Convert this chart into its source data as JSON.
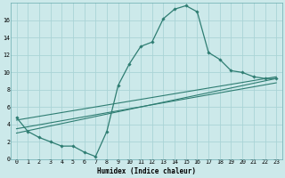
{
  "xlabel": "Humidex (Indice chaleur)",
  "bg_color": "#cce9ea",
  "grid_color": "#aad4d6",
  "line_color": "#2e7d72",
  "marker_color": "#2e7d72",
  "series1_x": [
    0,
    1,
    2,
    3,
    4,
    5,
    6,
    7,
    8,
    9,
    10,
    11,
    12,
    13,
    14,
    15,
    16,
    17,
    18,
    19,
    20,
    21,
    22,
    23
  ],
  "series1_y": [
    4.8,
    3.2,
    2.5,
    2.0,
    1.5,
    1.5,
    0.8,
    0.3,
    3.2,
    8.5,
    11.0,
    13.0,
    13.5,
    16.2,
    17.3,
    17.7,
    17.0,
    12.3,
    11.5,
    10.2,
    10.0,
    9.5,
    9.3,
    9.3
  ],
  "series2_x": [
    0,
    23
  ],
  "series2_y": [
    4.5,
    9.5
  ],
  "series3_x": [
    0,
    23
  ],
  "series3_y": [
    3.5,
    8.8
  ],
  "series4_x": [
    0,
    23
  ],
  "series4_y": [
    3.0,
    9.3
  ],
  "xlim": [
    -0.5,
    23.5
  ],
  "ylim": [
    0,
    18
  ],
  "yticks": [
    0,
    2,
    4,
    6,
    8,
    10,
    12,
    14,
    16
  ],
  "xticks": [
    0,
    1,
    2,
    3,
    4,
    5,
    6,
    7,
    8,
    9,
    10,
    11,
    12,
    13,
    14,
    15,
    16,
    17,
    18,
    19,
    20,
    21,
    22,
    23
  ],
  "xlabel_fontsize": 5.5,
  "tick_fontsize": 4.8
}
